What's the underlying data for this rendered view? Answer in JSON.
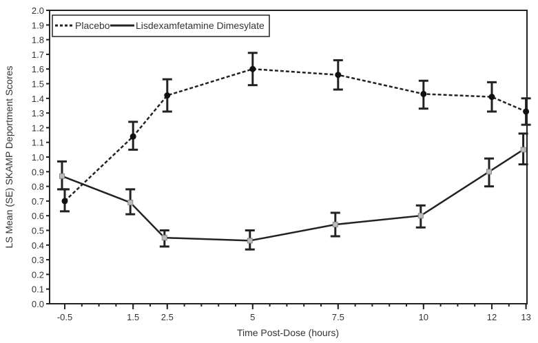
{
  "chart_data": {
    "type": "line",
    "title": "",
    "xlabel": "Time Post-Dose (hours)",
    "ylabel": "LS Mean (SE) SKAMP Deportment Scores",
    "ylim": [
      0,
      2.0
    ],
    "xlim": [
      -0.9,
      13.1
    ],
    "yticks": [
      "0.0",
      "0.1",
      "0.2",
      "0.3",
      "0.4",
      "0.5",
      "0.6",
      "0.7",
      "0.8",
      "0.9",
      "1.0",
      "1.1",
      "1.2",
      "1.3",
      "1.4",
      "1.5",
      "1.6",
      "1.7",
      "1.8",
      "1.9",
      "2.0"
    ],
    "x": [
      -0.5,
      1.5,
      2.5,
      5,
      7.5,
      10,
      12,
      13
    ],
    "xtick_labels": [
      "-0.5",
      "1.5",
      "2.5",
      "5",
      "7.5",
      "10",
      "12",
      "13"
    ],
    "legend_position": "top-left",
    "series": [
      {
        "name": "Placebo",
        "style": "dashed",
        "marker": "filled-circle",
        "color": "#222222",
        "values": [
          0.7,
          1.14,
          1.42,
          1.6,
          1.56,
          1.43,
          1.41,
          1.31
        ],
        "lower": [
          0.63,
          1.05,
          1.31,
          1.49,
          1.46,
          1.33,
          1.31,
          1.22
        ],
        "upper": [
          0.78,
          1.24,
          1.53,
          1.71,
          1.66,
          1.52,
          1.51,
          1.4
        ]
      },
      {
        "name": "Lisdexamfetamine Dimesylate",
        "style": "solid",
        "marker": "gray-square",
        "color": "#222222",
        "values": [
          0.87,
          0.69,
          0.45,
          0.43,
          0.54,
          0.6,
          0.9,
          1.05
        ],
        "lower": [
          0.78,
          0.61,
          0.39,
          0.37,
          0.46,
          0.52,
          0.8,
          0.95
        ],
        "upper": [
          0.97,
          0.78,
          0.5,
          0.5,
          0.62,
          0.67,
          0.99,
          1.16
        ]
      }
    ]
  }
}
